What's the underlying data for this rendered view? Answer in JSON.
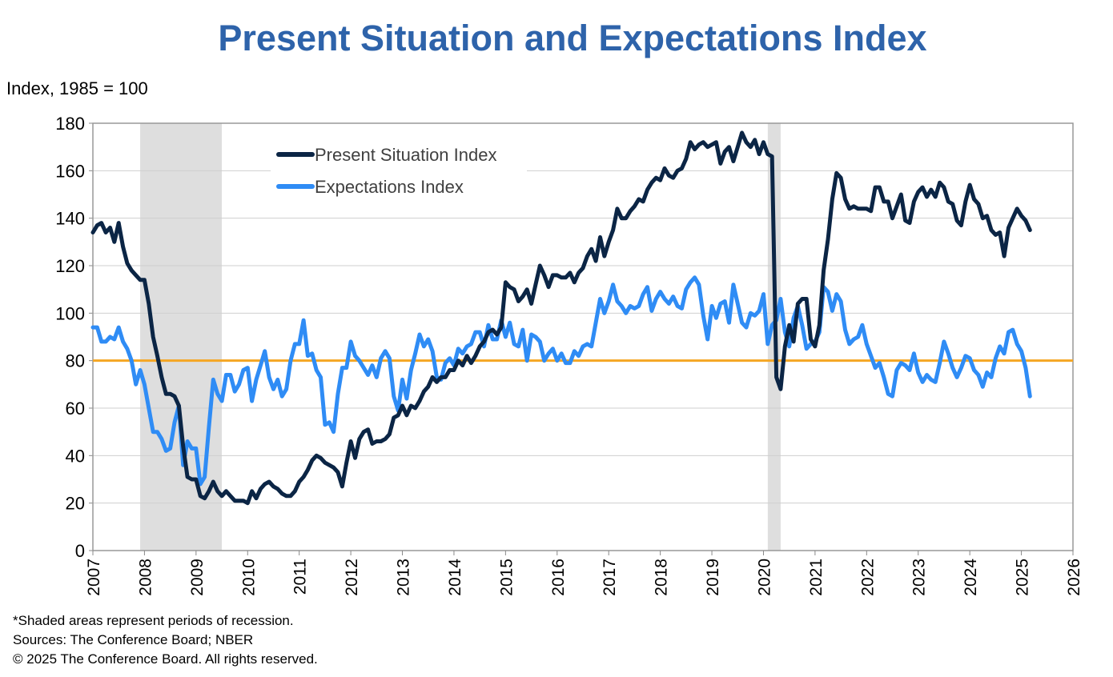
{
  "chart_data": {
    "type": "line",
    "title": "Present Situation and Expectations Index",
    "ylabel": "Index, 1985 = 100",
    "xlabel": "",
    "ylim": [
      0,
      180
    ],
    "yticks": [
      0,
      20,
      40,
      60,
      80,
      100,
      120,
      140,
      160,
      180
    ],
    "xlim": [
      2007,
      2026
    ],
    "xticks": [
      "2007",
      "2008",
      "2009",
      "2010",
      "2011",
      "2012",
      "2013",
      "2014",
      "2015",
      "2016",
      "2017",
      "2018",
      "2019",
      "2020",
      "2021",
      "2022",
      "2023",
      "2024",
      "2025",
      "2026"
    ],
    "grid": "horizontal",
    "legend_placement": "top-left",
    "reference_line": {
      "value": 80,
      "color": "#F5A623"
    },
    "recessions": [
      {
        "start": "2007-12",
        "end": "2009-06"
      },
      {
        "start": "2020-02",
        "end": "2020-04"
      }
    ],
    "series": [
      {
        "name": "Present Situation Index",
        "color": "#0B2545",
        "monthly_by_year": {
          "2007": [
            134,
            137,
            138,
            134,
            136,
            130,
            138,
            128,
            121,
            118,
            116,
            114
          ],
          "2008": [
            114,
            104,
            90,
            82,
            73,
            66,
            66,
            65,
            61,
            44,
            31,
            30
          ],
          "2009": [
            30,
            23,
            22,
            25,
            29,
            25,
            23,
            25,
            23,
            21,
            21,
            21
          ],
          "2010": [
            20,
            25,
            22,
            26,
            28,
            29,
            27,
            26,
            24,
            23,
            23,
            25
          ],
          "2011": [
            29,
            31,
            34,
            38,
            40,
            39,
            37,
            36,
            35,
            33,
            27,
            37
          ],
          "2012": [
            46,
            39,
            47,
            50,
            51,
            45,
            46,
            46,
            47,
            49,
            56,
            57
          ],
          "2013": [
            61,
            57,
            61,
            60,
            63,
            67,
            69,
            73,
            71,
            73,
            73,
            76
          ],
          "2014": [
            76,
            80,
            78,
            82,
            79,
            82,
            86,
            88,
            92,
            93,
            91,
            94
          ],
          "2015": [
            113,
            111,
            110,
            105,
            107,
            110,
            104,
            112,
            120,
            116,
            111,
            116
          ],
          "2016": [
            116,
            115,
            115,
            117,
            113,
            117,
            119,
            124,
            127,
            122,
            132,
            124
          ],
          "2017": [
            130,
            135,
            144,
            140,
            140,
            143,
            145,
            148,
            147,
            152,
            155,
            157
          ],
          "2018": [
            156,
            161,
            158,
            157,
            160,
            161,
            165,
            172,
            169,
            171,
            172,
            170
          ],
          "2019": [
            171,
            172,
            163,
            168,
            170,
            164,
            170,
            176,
            172,
            170,
            173,
            167
          ],
          "2020": [
            172,
            167,
            166,
            73,
            68,
            86,
            95,
            88,
            104,
            106,
            106,
            89
          ],
          "2021": [
            86,
            95,
            118,
            131,
            148,
            159,
            157,
            148,
            144,
            145,
            144,
            144
          ],
          "2022": [
            144,
            143,
            153,
            153,
            147,
            147,
            140,
            145,
            150,
            139,
            138,
            147
          ],
          "2023": [
            151,
            153,
            149,
            152,
            149,
            155,
            153,
            147,
            146,
            139,
            137,
            147
          ],
          "2024": [
            154,
            148,
            146,
            140,
            141,
            135,
            133,
            134,
            124,
            136,
            140,
            144
          ],
          "2025": [
            141,
            139,
            135
          ]
        }
      },
      {
        "name": "Expectations Index",
        "color": "#2F8CF5",
        "monthly_by_year": {
          "2007": [
            94,
            94,
            88,
            88,
            90,
            89,
            94,
            88,
            85,
            80,
            70,
            76
          ],
          "2008": [
            70,
            60,
            50,
            50,
            47,
            42,
            43,
            54,
            61,
            36,
            46,
            43
          ],
          "2009": [
            43,
            28,
            31,
            52,
            72,
            66,
            63,
            74,
            74,
            67,
            70,
            76
          ],
          "2010": [
            77,
            63,
            72,
            78,
            84,
            73,
            68,
            72,
            65,
            68,
            80,
            87
          ],
          "2011": [
            87,
            97,
            82,
            83,
            76,
            73,
            53,
            54,
            50,
            66,
            77,
            77
          ],
          "2012": [
            88,
            82,
            80,
            77,
            74,
            78,
            73,
            81,
            84,
            81,
            65,
            59
          ],
          "2013": [
            72,
            64,
            76,
            83,
            91,
            86,
            89,
            84,
            73,
            72,
            79,
            81
          ],
          "2014": [
            78,
            85,
            83,
            86,
            87,
            92,
            92,
            86,
            95,
            89,
            89,
            97
          ],
          "2015": [
            90,
            96,
            87,
            86,
            93,
            80,
            91,
            90,
            88,
            80,
            83,
            85
          ],
          "2016": [
            80,
            83,
            79,
            79,
            84,
            82,
            86,
            87,
            86,
            96,
            106,
            100
          ],
          "2017": [
            105,
            112,
            105,
            103,
            100,
            103,
            102,
            103,
            108,
            111,
            101,
            106
          ],
          "2018": [
            109,
            106,
            104,
            107,
            103,
            102,
            110,
            113,
            115,
            112,
            99,
            89
          ],
          "2019": [
            103,
            98,
            104,
            105,
            96,
            112,
            104,
            96,
            94,
            100,
            99,
            101
          ],
          "2020": [
            108,
            87,
            95,
            97,
            106,
            92,
            86,
            98,
            103,
            95,
            85,
            87
          ],
          "2021": [
            88,
            92,
            111,
            109,
            101,
            108,
            105,
            93,
            87,
            89,
            90,
            95
          ],
          "2022": [
            87,
            82,
            77,
            79,
            73,
            66,
            65,
            76,
            79,
            78,
            76,
            83
          ],
          "2023": [
            75,
            71,
            74,
            72,
            71,
            79,
            88,
            83,
            77,
            73,
            77,
            82
          ],
          "2024": [
            81,
            76,
            74,
            69,
            75,
            73,
            81,
            86,
            83,
            92,
            93,
            87
          ],
          "2025": [
            84,
            77,
            65
          ]
        }
      }
    ]
  },
  "footnotes": [
    "*Shaded areas represent periods of recession.",
    "Sources: The Conference Board;  NBER",
    "© 2025 The Conference Board. All rights reserved."
  ]
}
